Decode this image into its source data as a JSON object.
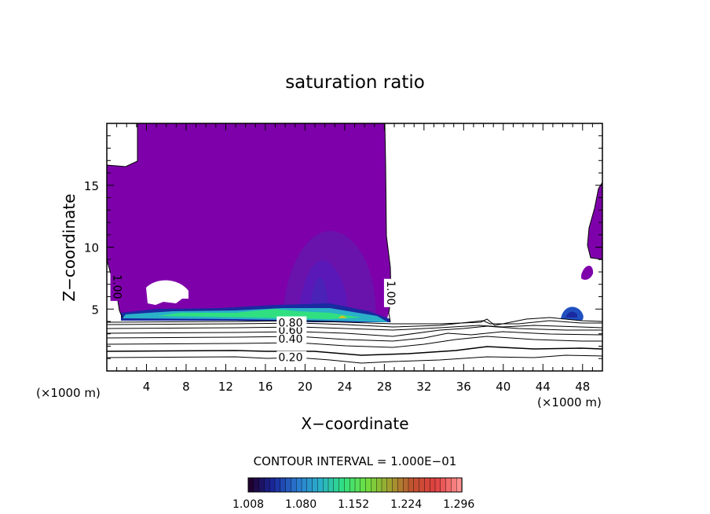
{
  "chart_data": {
    "type": "heatmap",
    "title": "saturation ratio",
    "xlabel": "X−coordinate",
    "ylabel": "Z−coordinate",
    "x_unit_left": "(×1000 m)",
    "x_unit_right": "(×1000 m)",
    "xlim": [
      0,
      50
    ],
    "ylim": [
      0,
      20
    ],
    "x_ticks": [
      4,
      8,
      12,
      16,
      20,
      24,
      28,
      32,
      36,
      40,
      44,
      48
    ],
    "x_tick_labels": [
      "4",
      "8",
      "12",
      "16",
      "20",
      "24",
      "28",
      "32",
      "36",
      "40",
      "44",
      "48"
    ],
    "y_ticks": [
      5,
      10,
      15
    ],
    "y_tick_labels": [
      "5",
      "10",
      "15"
    ],
    "contour_levels": [
      0.2,
      0.3,
      0.4,
      0.5,
      0.6,
      0.7,
      0.8,
      0.9
    ],
    "contour_labels": [
      {
        "text": "0.20",
        "x": 17.3,
        "z": 1.1
      },
      {
        "text": "0.40",
        "x": 17.3,
        "z": 2.6
      },
      {
        "text": "0.60",
        "x": 17.3,
        "z": 3.3
      },
      {
        "text": "0.80",
        "x": 17.3,
        "z": 3.9
      },
      {
        "text": "1.00",
        "x": 1.0,
        "z": 6.8
      },
      {
        "text": "1.00",
        "x": 28.6,
        "z": 6.3
      }
    ],
    "contour_interval": "CONTOUR INTERVAL = 1.000E−01",
    "colorbar": {
      "labels": [
        "1.008",
        "1.080",
        "1.152",
        "1.224",
        "1.296"
      ],
      "min": 1.008,
      "max": 1.3,
      "colors": [
        "#200030",
        "#1a2aa0",
        "#2a7ad0",
        "#2ab0c8",
        "#30e080",
        "#70e040",
        "#a0a030",
        "#c05030",
        "#e04040",
        "#ff9090"
      ]
    },
    "saturated_color": "#7e00aa",
    "grid": false
  }
}
